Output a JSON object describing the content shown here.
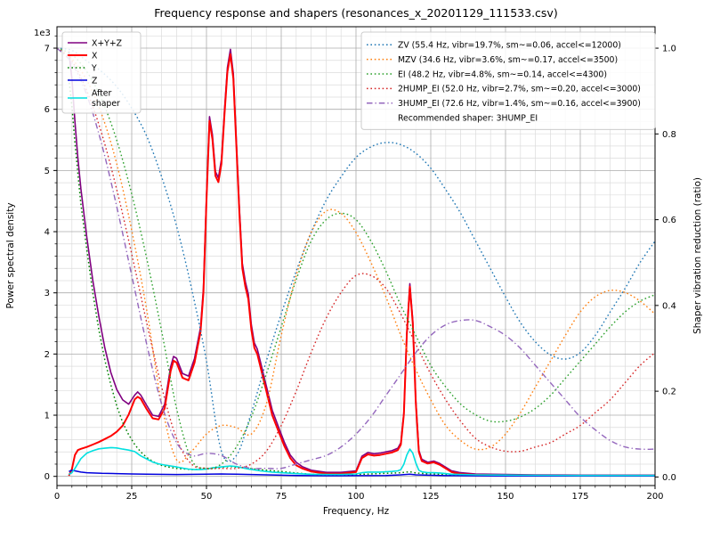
{
  "chart_data": {
    "type": "line",
    "title": "Frequency response and shapers (resonances_x_20201129_111533.csv)",
    "xlabel": "Frequency, Hz",
    "ylabel_left": "Power spectral density",
    "ylabel_right": "Shaper vibration reduction (ratio)",
    "y_left_offset_label": "1e3",
    "x_range": [
      0,
      200
    ],
    "x_major_ticks": [
      0,
      25,
      50,
      75,
      100,
      125,
      150,
      175,
      200
    ],
    "x_minor_step": 5,
    "y_left_ticks": [
      0,
      1,
      2,
      3,
      4,
      5,
      6,
      7
    ],
    "y_left_scale": 1000,
    "y_left_minor_step": 200,
    "y_left_view": [
      -150,
      7350
    ],
    "y_right_ticks": [
      "0.0",
      "0.2",
      "0.4",
      "0.6",
      "0.8",
      "1.0"
    ],
    "y_right_view": [
      -0.02,
      1.05
    ],
    "recommendation": "Recommended shaper: 3HUMP_EI",
    "psd_series": [
      {
        "name": "x-y-z",
        "legend_label": "X+Y+Z",
        "color": "#800080",
        "style": "solid",
        "width": 1.6,
        "axis": "left",
        "x": [
          4,
          5,
          6,
          7,
          8,
          10,
          12,
          14,
          16,
          18,
          20,
          22,
          24,
          26,
          27,
          28,
          30,
          32,
          34,
          36,
          38,
          39,
          40,
          42,
          44,
          46,
          47,
          48,
          49,
          50,
          51,
          52,
          53,
          54,
          55,
          56,
          57,
          58,
          59,
          60,
          61,
          62,
          63,
          64,
          65,
          66,
          67,
          68,
          69,
          70,
          72,
          74,
          76,
          78,
          80,
          82,
          85,
          90,
          95,
          100,
          102,
          104,
          106,
          108,
          110,
          112,
          114,
          115,
          116,
          117,
          118,
          119,
          120,
          121,
          122,
          124,
          126,
          128,
          130,
          132,
          135,
          140,
          150,
          160,
          175,
          200
        ],
        "y": [
          6950,
          6500,
          5800,
          5200,
          4700,
          3900,
          3200,
          2620,
          2100,
          1700,
          1420,
          1250,
          1180,
          1330,
          1380,
          1330,
          1160,
          1000,
          980,
          1180,
          1790,
          1960,
          1930,
          1680,
          1640,
          1930,
          2180,
          2430,
          3080,
          4580,
          5880,
          5580,
          4980,
          4880,
          5180,
          5980,
          6680,
          6980,
          6580,
          5480,
          4380,
          3480,
          3180,
          2980,
          2480,
          2180,
          2080,
          1880,
          1680,
          1480,
          1080,
          820,
          560,
          350,
          230,
          160,
          100,
          65,
          65,
          90,
          330,
          390,
          370,
          380,
          400,
          420,
          460,
          550,
          1050,
          2350,
          3150,
          2550,
          1250,
          430,
          280,
          230,
          250,
          210,
          150,
          90,
          60,
          40,
          30,
          25,
          20,
          20
        ]
      },
      {
        "name": "x",
        "legend_label": "X",
        "color": "#ff0000",
        "style": "solid",
        "width": 2.0,
        "axis": "left",
        "x": [
          4,
          5,
          6,
          7,
          8,
          10,
          12,
          14,
          16,
          18,
          20,
          22,
          24,
          26,
          27,
          28,
          30,
          32,
          34,
          36,
          38,
          39,
          40,
          42,
          44,
          46,
          47,
          48,
          49,
          50,
          51,
          52,
          53,
          54,
          55,
          56,
          57,
          58,
          59,
          60,
          61,
          62,
          63,
          64,
          65,
          66,
          67,
          68,
          69,
          70,
          72,
          74,
          76,
          78,
          80,
          82,
          85,
          90,
          95,
          100,
          102,
          104,
          106,
          108,
          110,
          112,
          114,
          115,
          116,
          117,
          118,
          119,
          120,
          121,
          122,
          124,
          126,
          128,
          130,
          132,
          135,
          140,
          150,
          160,
          175,
          200
        ],
        "y": [
          10,
          120,
          350,
          430,
          450,
          480,
          520,
          560,
          610,
          660,
          730,
          830,
          1010,
          1260,
          1300,
          1270,
          1100,
          950,
          930,
          1110,
          1720,
          1890,
          1860,
          1610,
          1570,
          1860,
          2110,
          2360,
          3010,
          4510,
          5810,
          5510,
          4910,
          4810,
          5110,
          5910,
          6610,
          6900,
          6500,
          5400,
          4300,
          3400,
          3100,
          2900,
          2400,
          2100,
          2000,
          1800,
          1600,
          1400,
          1000,
          750,
          500,
          300,
          180,
          130,
          80,
          45,
          45,
          70,
          300,
          360,
          340,
          350,
          370,
          390,
          430,
          520,
          1020,
          2320,
          3100,
          2500,
          1200,
          400,
          250,
          210,
          230,
          190,
          130,
          70,
          40,
          25,
          15,
          10,
          10,
          10
        ]
      },
      {
        "name": "y",
        "legend_label": "Y",
        "color": "#008000",
        "style": "dotted",
        "width": 1.5,
        "axis": "left",
        "x": [
          4,
          5,
          6,
          7,
          8,
          10,
          12,
          14,
          16,
          18,
          20,
          22,
          24,
          26,
          28,
          30,
          32,
          34,
          36,
          38,
          40,
          45,
          50,
          52,
          55,
          58,
          60,
          65,
          70,
          75,
          80,
          85,
          90,
          95,
          100,
          105,
          110,
          115,
          118,
          120,
          125,
          130,
          140,
          150,
          160,
          175,
          200
        ],
        "y": [
          6500,
          6050,
          5450,
          4950,
          4450,
          3700,
          3000,
          2400,
          1900,
          1500,
          1150,
          880,
          680,
          520,
          400,
          310,
          245,
          195,
          165,
          145,
          130,
          110,
          120,
          130,
          150,
          160,
          150,
          125,
          100,
          80,
          55,
          35,
          25,
          25,
          30,
          40,
          50,
          60,
          75,
          55,
          40,
          30,
          20,
          15,
          12,
          10,
          10
        ]
      },
      {
        "name": "z",
        "legend_label": "Z",
        "color": "#0000dd",
        "style": "solid",
        "width": 1.5,
        "axis": "left",
        "x": [
          4,
          5,
          6,
          8,
          10,
          15,
          20,
          25,
          30,
          40,
          50,
          55,
          60,
          70,
          80,
          90,
          100,
          110,
          115,
          118,
          120,
          130,
          150,
          200
        ],
        "y": [
          80,
          100,
          90,
          70,
          60,
          50,
          45,
          40,
          35,
          30,
          35,
          40,
          35,
          25,
          15,
          10,
          12,
          15,
          25,
          35,
          25,
          12,
          8,
          6
        ]
      },
      {
        "name": "after-shaper",
        "legend_label": "After\nshaper",
        "color": "#00e0e0",
        "style": "solid",
        "width": 1.6,
        "axis": "left",
        "x": [
          4,
          5,
          6,
          8,
          10,
          12,
          14,
          16,
          18,
          20,
          22,
          24,
          26,
          28,
          30,
          32,
          34,
          36,
          38,
          40,
          42,
          44,
          46,
          48,
          50,
          52,
          54,
          56,
          58,
          60,
          62,
          64,
          66,
          68,
          70,
          72,
          75,
          80,
          85,
          90,
          95,
          100,
          102,
          104,
          106,
          108,
          110,
          112,
          114,
          115,
          116,
          117,
          118,
          119,
          120,
          121,
          122,
          124,
          126,
          128,
          130,
          132,
          135,
          140,
          150,
          160,
          175,
          200
        ],
        "y": [
          30,
          60,
          130,
          290,
          380,
          420,
          450,
          460,
          470,
          465,
          445,
          430,
          405,
          335,
          285,
          235,
          205,
          185,
          170,
          155,
          135,
          120,
          110,
          110,
          120,
          140,
          150,
          160,
          170,
          160,
          140,
          120,
          105,
          90,
          80,
          70,
          60,
          45,
          35,
          30,
          30,
          40,
          60,
          70,
          70,
          70,
          75,
          80,
          90,
          110,
          200,
          350,
          445,
          380,
          220,
          100,
          75,
          60,
          60,
          55,
          45,
          35,
          30,
          25,
          20,
          18,
          15,
          15
        ]
      }
    ],
    "shaper_x": [
      0,
      5,
      10,
      15,
      20,
      25,
      30,
      35,
      40,
      45,
      50,
      55,
      60,
      65,
      70,
      75,
      80,
      85,
      90,
      95,
      100,
      105,
      110,
      115,
      120,
      125,
      130,
      135,
      140,
      145,
      150,
      155,
      160,
      165,
      170,
      175,
      180,
      185,
      190,
      195,
      200
    ],
    "shaper_series": [
      {
        "name": "zv",
        "legend_label": "ZV (55.4 Hz, vibr=19.7%, sm~=0.06, accel<=12000)",
        "color": "#1f77b4",
        "style": "dotted",
        "axis": "right",
        "values": [
          1.0,
          0.995,
          0.97,
          0.945,
          0.91,
          0.86,
          0.795,
          0.7,
          0.585,
          0.44,
          0.27,
          0.06,
          0.05,
          0.15,
          0.27,
          0.38,
          0.48,
          0.57,
          0.645,
          0.7,
          0.745,
          0.77,
          0.78,
          0.775,
          0.755,
          0.72,
          0.67,
          0.615,
          0.55,
          0.485,
          0.42,
          0.36,
          0.315,
          0.285,
          0.275,
          0.29,
          0.33,
          0.385,
          0.44,
          0.5,
          0.55
        ]
      },
      {
        "name": "mzv",
        "legend_label": "MZV (34.6 Hz, vibr=3.6%, sm~=0.17, accel<=3500)",
        "color": "#ff7f0e",
        "style": "dotted",
        "axis": "right",
        "values": [
          1.0,
          0.975,
          0.925,
          0.845,
          0.73,
          0.575,
          0.39,
          0.17,
          0.04,
          0.06,
          0.1,
          0.12,
          0.115,
          0.1,
          0.17,
          0.33,
          0.47,
          0.57,
          0.62,
          0.615,
          0.57,
          0.5,
          0.42,
          0.33,
          0.25,
          0.18,
          0.12,
          0.085,
          0.065,
          0.07,
          0.1,
          0.15,
          0.21,
          0.27,
          0.33,
          0.385,
          0.42,
          0.435,
          0.43,
          0.41,
          0.38
        ]
      },
      {
        "name": "ei",
        "legend_label": "EI (48.2 Hz, vibr=4.8%, sm~=0.14, accel<=4300)",
        "color": "#2ca02c",
        "style": "dotted",
        "axis": "right",
        "values": [
          1.0,
          0.985,
          0.945,
          0.88,
          0.785,
          0.66,
          0.51,
          0.34,
          0.16,
          0.04,
          0.02,
          0.03,
          0.07,
          0.14,
          0.24,
          0.35,
          0.46,
          0.55,
          0.6,
          0.615,
          0.6,
          0.55,
          0.48,
          0.4,
          0.33,
          0.26,
          0.21,
          0.17,
          0.145,
          0.13,
          0.13,
          0.14,
          0.16,
          0.19,
          0.23,
          0.27,
          0.31,
          0.35,
          0.385,
          0.41,
          0.425
        ]
      },
      {
        "name": "2hump-ei",
        "legend_label": "2HUMP_EI (52.0 Hz, vibr=2.7%, sm~=0.20, accel<=3000)",
        "color": "#d62728",
        "style": "dotted",
        "axis": "right",
        "values": [
          1.0,
          0.97,
          0.9,
          0.8,
          0.67,
          0.52,
          0.36,
          0.21,
          0.09,
          0.03,
          0.02,
          0.02,
          0.02,
          0.03,
          0.06,
          0.12,
          0.2,
          0.29,
          0.37,
          0.43,
          0.47,
          0.47,
          0.44,
          0.38,
          0.31,
          0.24,
          0.18,
          0.13,
          0.09,
          0.07,
          0.06,
          0.06,
          0.07,
          0.08,
          0.1,
          0.12,
          0.15,
          0.18,
          0.22,
          0.26,
          0.29
        ]
      },
      {
        "name": "3hump-ei",
        "legend_label": "3HUMP_EI (72.6 Hz, vibr=1.4%, sm~=0.16, accel<=3900)",
        "color": "#9467bd",
        "style": "dashdot",
        "axis": "right",
        "values": [
          1.0,
          0.965,
          0.89,
          0.775,
          0.63,
          0.47,
          0.31,
          0.17,
          0.08,
          0.05,
          0.055,
          0.05,
          0.03,
          0.02,
          0.02,
          0.02,
          0.03,
          0.04,
          0.05,
          0.07,
          0.1,
          0.14,
          0.19,
          0.24,
          0.29,
          0.33,
          0.355,
          0.365,
          0.365,
          0.35,
          0.33,
          0.3,
          0.26,
          0.22,
          0.18,
          0.14,
          0.11,
          0.085,
          0.07,
          0.065,
          0.065
        ]
      }
    ]
  }
}
